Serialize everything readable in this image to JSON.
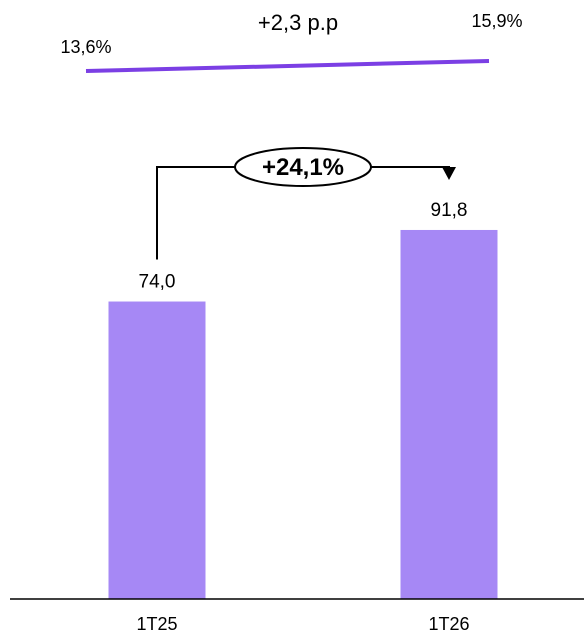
{
  "chart_data": [
    {
      "type": "line",
      "x": [
        "1T25",
        "1T26"
      ],
      "series": [
        {
          "values": [
            13.6,
            15.9
          ],
          "labels": [
            "13,6%",
            "15,9%"
          ]
        }
      ],
      "annotation": "+2,3 p.p",
      "color": "#7B3FE4"
    },
    {
      "type": "bar",
      "categories": [
        "1T25",
        "1T26"
      ],
      "values": [
        74.0,
        91.8
      ],
      "value_labels": [
        "74,0",
        "91,8"
      ],
      "growth_label": "+24,1%",
      "ylim": [
        0,
        100
      ],
      "color": "#A688F5",
      "grid": false
    }
  ],
  "colors": {
    "bar": "#A688F5",
    "line": "#7B3FE4",
    "axis": "#000000",
    "text": "#000000"
  }
}
